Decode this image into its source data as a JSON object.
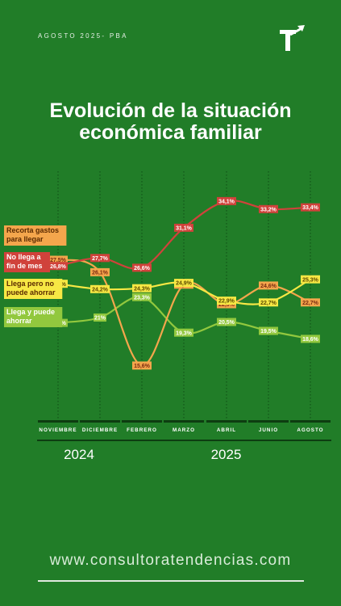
{
  "header": {
    "period": "AGOSTO 2025- PBA"
  },
  "chart_title": "Evolución de la situación económica familiar",
  "footer": {
    "url": "www.consultoratendencias.com"
  },
  "year_labels": [
    "2024",
    "2025"
  ],
  "colors": {
    "background": "#217d28",
    "red": "#d0423b",
    "orange": "#f4a64c",
    "yellow": "#f7e844",
    "green": "#92c83e"
  },
  "chart_data": {
    "type": "line",
    "categories": [
      "NOVIEMBRE",
      "DICIEMBRE",
      "FEBRERO",
      "MARZO",
      "ABRIL",
      "JUNIO",
      "AGOSTO"
    ],
    "years": [
      {
        "label": "2024",
        "from": 0,
        "to": 1
      },
      {
        "label": "2025",
        "from": 2,
        "to": 6
      }
    ],
    "ylim": [
      14,
      36
    ],
    "grid": "vertical dotted",
    "series": [
      {
        "name": "Recorta gastos para llegar",
        "color": "#f4a64c",
        "values": [
          27.5,
          26.1,
          15.6,
          24.7,
          22.5,
          24.6,
          22.7
        ],
        "labels": [
          "27,5%",
          "26,1%",
          "15,6%",
          "24,7%",
          "22,5%",
          "24,6%",
          "22,7%"
        ]
      },
      {
        "name": "No llega a fin de mes",
        "color": "#d0423b",
        "values": [
          26.8,
          27.7,
          26.6,
          31.1,
          34.1,
          33.2,
          33.4
        ],
        "labels": [
          "26,8%",
          "27,7%",
          "26,6%",
          "31,1%",
          "34,1%",
          "33,2%",
          "33,4%"
        ]
      },
      {
        "name": "Llega pero no puede ahorrar",
        "color": "#f7e844",
        "values": [
          24.8,
          24.2,
          24.3,
          24.9,
          22.9,
          22.7,
          25.3
        ],
        "labels": [
          "24,8%",
          "24,2%",
          "24,3%",
          "24,9%",
          "22,9%",
          "22,7%",
          "25,3%"
        ]
      },
      {
        "name": "Llega y puede ahorrar",
        "color": "#92c83e",
        "values": [
          20.4,
          21.0,
          23.3,
          19.3,
          20.5,
          19.5,
          18.6
        ],
        "labels": [
          "20,4%",
          "21%",
          "23,3%",
          "19,3%",
          "20,5%",
          "19,5%",
          "18,6%"
        ]
      }
    ]
  }
}
